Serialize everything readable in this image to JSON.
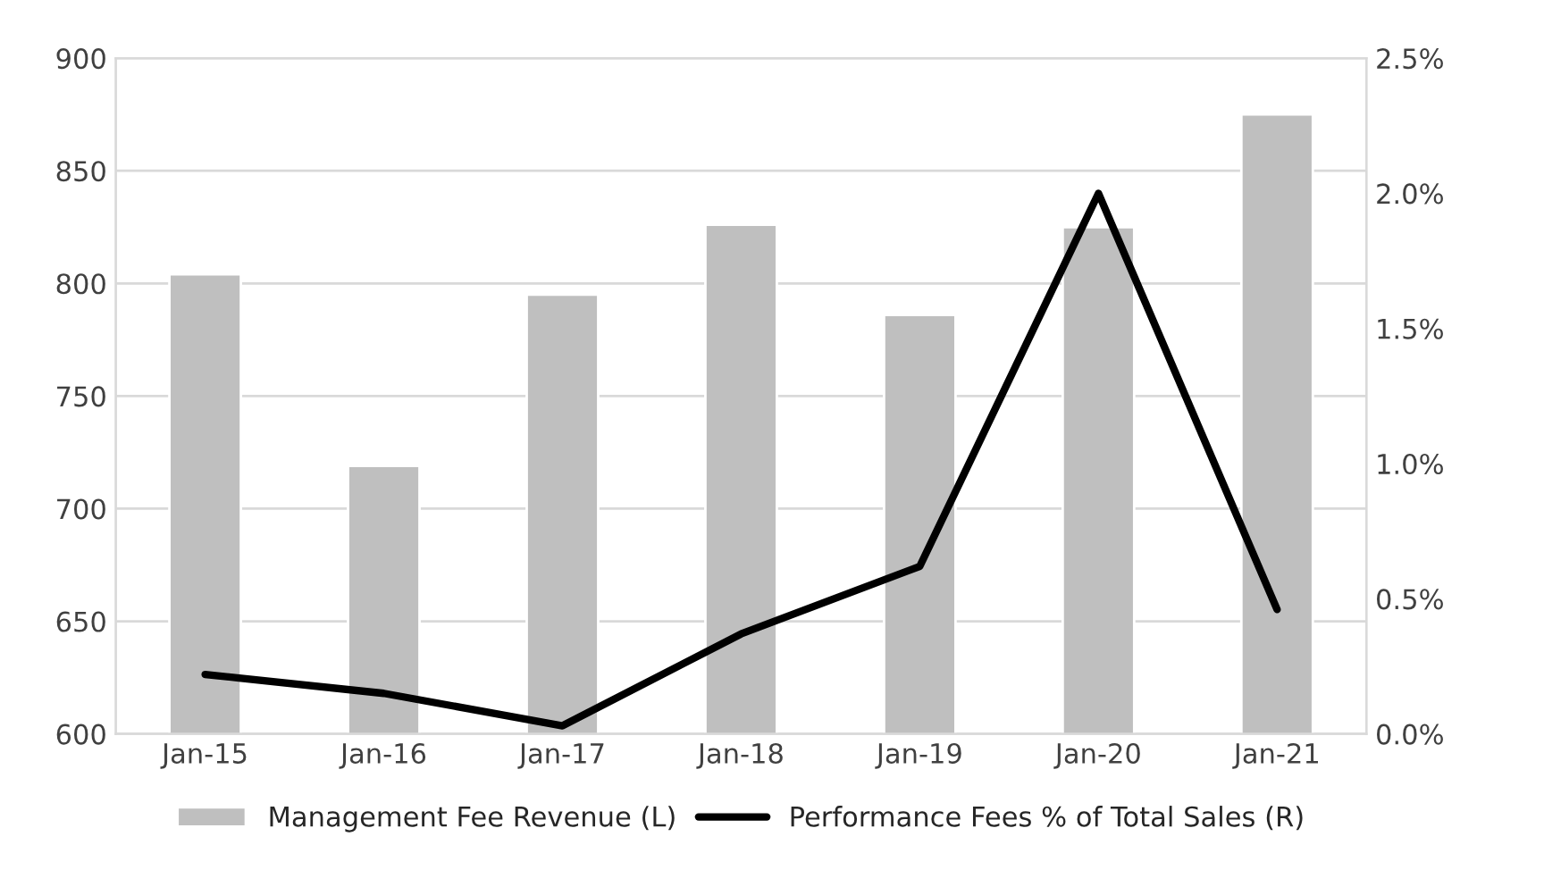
{
  "chart_data": {
    "type": "bar",
    "categories": [
      "Jan-15",
      "Jan-16",
      "Jan-17",
      "Jan-18",
      "Jan-19",
      "Jan-20",
      "Jan-21"
    ],
    "series": [
      {
        "name": "Management Fee Revenue (L)",
        "color": "#bfbfbf",
        "values": [
          804,
          719,
          795,
          826,
          786,
          825,
          875
        ]
      },
      {
        "name": "Performance Fees % of Total Sales (R)",
        "type": "line",
        "axis": "y2",
        "color": "#000000",
        "values": [
          0.22,
          0.15,
          0.03,
          0.37,
          0.62,
          2.0,
          0.46
        ]
      }
    ],
    "ylim": [
      600,
      900
    ],
    "yticks": [
      600,
      650,
      700,
      750,
      800,
      850,
      900
    ],
    "y2lim": [
      0,
      2.5
    ],
    "y2ticks": [
      {
        "value": 0,
        "label": "0.0%"
      },
      {
        "value": 0.5,
        "label": "0.5%"
      },
      {
        "value": 1.0,
        "label": "1.0%"
      },
      {
        "value": 1.5,
        "label": "1.5%"
      },
      {
        "value": 2.0,
        "label": "2.0%"
      },
      {
        "value": 2.5,
        "label": "2.5%"
      }
    ],
    "grid": "y",
    "legend": "bottom",
    "marker": "none",
    "line_style": "solid"
  }
}
